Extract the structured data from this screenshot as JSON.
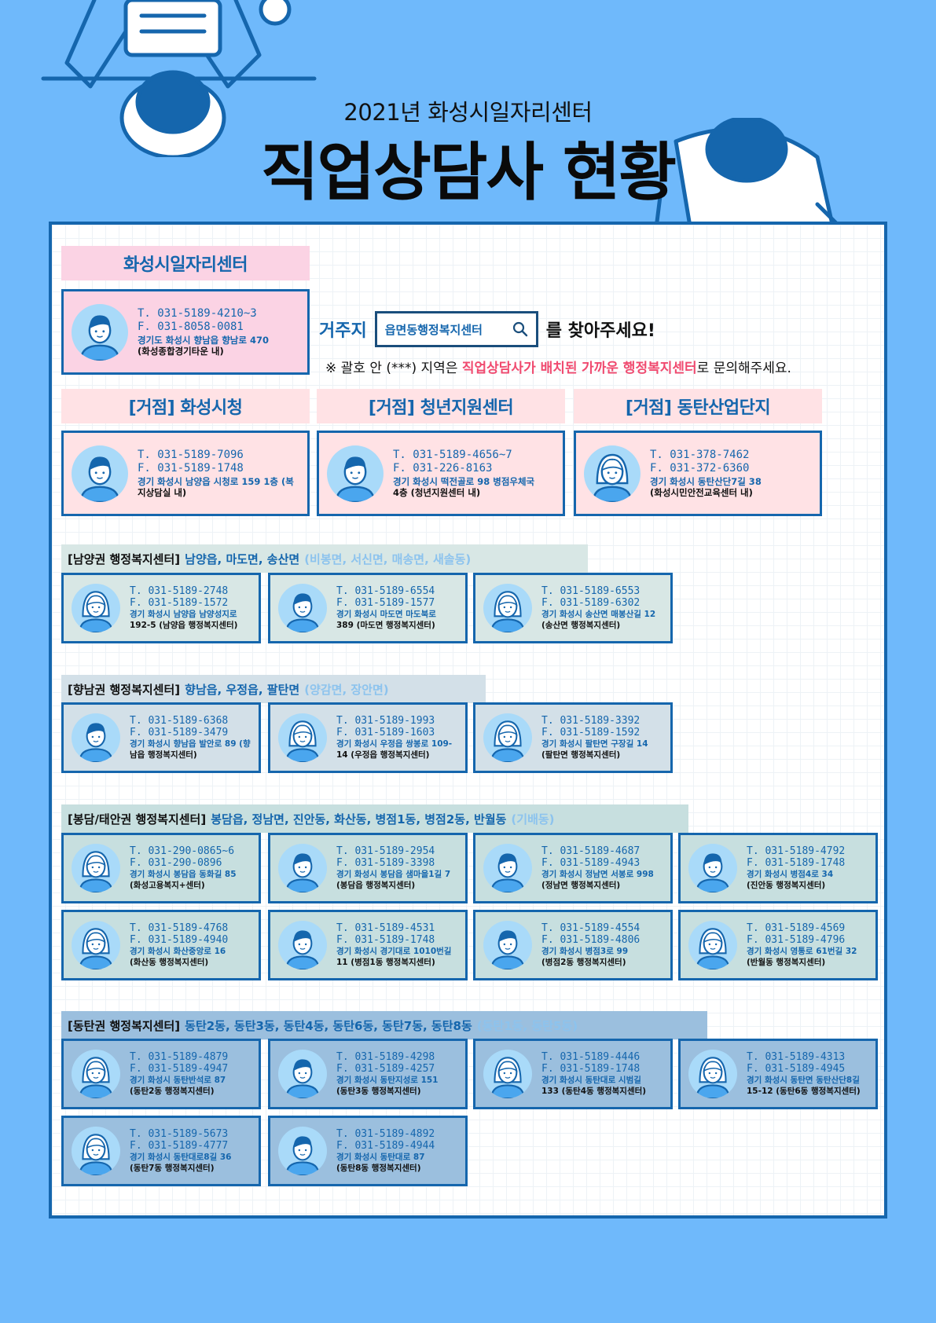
{
  "header": {
    "subtitle": "2021년 화성시일자리센터",
    "title": "직업상담사 현황"
  },
  "search": {
    "label": "거주지",
    "box_text": "읍면동행정복지센터",
    "suffix": "를 찾아주세요!",
    "notice_pre": "※ 괄호 안 (***) 지역은 ",
    "notice_hl1": "직업상담사가 배치된",
    "notice_hl2": "가까운 행정복지센터",
    "notice_post": "로 문의해주세요."
  },
  "colors": {
    "board_border": "#1566ad",
    "pink": "#fbd3e4",
    "light_pink": "#ffe2e5",
    "gray_green": "#d8e7e5",
    "slate": "#d3e0e8",
    "sage": "#c7dfdf",
    "steel": "#9bbfde",
    "text_blue": "#1566ad",
    "highlight": "#f04a6f"
  },
  "center": {
    "title": "화성시일자리센터",
    "card": {
      "tel": "T. 031-5189-4210~3",
      "fax": "F. 031-8058-0081",
      "addr": "경기도 화성시 향남읍 향남로 470",
      "loc": "(화성종합경기타운 내)",
      "avatar": "male-counselor-avatar"
    }
  },
  "hubs": [
    {
      "title": "[거점] 화성시청",
      "card": {
        "tel": "T. 031-5189-7096",
        "fax": "F. 031-5189-1748",
        "addr": "경기 화성시 남양읍 시청로 159 1층 (복",
        "loc": "지상담실 내)",
        "avatar": "male-counselor-avatar"
      }
    },
    {
      "title": "[거점] 청년지원센터",
      "card": {
        "tel": "T. 031-5189-4656~7",
        "fax": "F. 031-226-8163",
        "addr": "경기 화성시 떡전골로 98 병점우체국",
        "loc": "4층 (청년지원센터 내)",
        "avatar": "male-counselor-avatar"
      }
    },
    {
      "title": "[거점] 동탄산업단지",
      "card": {
        "tel": "T. 031-378-7462",
        "fax": "F. 031-372-6360",
        "addr": "경기 화성시 동탄산단7길 38",
        "loc": "(화성시민안전교육센터 내)",
        "avatar": "female-counselor-avatar"
      }
    }
  ],
  "regions": [
    {
      "prefix": "[남양권 행정복지센터]",
      "main": "남양읍, 마도면, 송산면",
      "extra": "(비봉면, 서신면, 매송면, 새솔동)",
      "cards": [
        {
          "tel": "T. 031-5189-2748",
          "fax": "F. 031-5189-1572",
          "addr": "경기 화성시 남양읍 남양성지로",
          "loc": "192-5 (남양읍 행정복지센터)",
          "avatar": "female-counselor-avatar"
        },
        {
          "tel": "T. 031-5189-6554",
          "fax": "F. 031-5189-1577",
          "addr": "경기 화성시 마도면 마도북로",
          "loc": "389 (마도면 행정복지센터)",
          "avatar": "male-counselor-avatar"
        },
        {
          "tel": "T. 031-5189-6553",
          "fax": "F. 031-5189-6302",
          "addr": "경기 화성시  송산면 매봉산길 12",
          "loc": "(송산면 행정복지센터)",
          "avatar": "female-counselor-avatar"
        }
      ]
    },
    {
      "prefix": "[향남권 행정복지센터]",
      "main": "향남읍, 우정읍, 팔탄면",
      "extra": "(양감면, 장안면)",
      "cards": [
        {
          "tel": "T. 031-5189-6368",
          "fax": "F. 031-5189-3479",
          "addr": "경기 화성시 향남읍 발안로 89 (향",
          "loc": "남읍 행정복지센터)",
          "avatar": "male-counselor-avatar"
        },
        {
          "tel": "T. 031-5189-1993",
          "fax": "F. 031-5189-1603",
          "addr": "경기 화성시 우정읍 쌍봉로 109-",
          "loc": "14 (우정읍 행정복지센터)",
          "avatar": "female-counselor-avatar"
        },
        {
          "tel": "T. 031-5189-3392",
          "fax": "F. 031-5189-1592",
          "addr": "경기 화성시 팔탄면 구장길 14",
          "loc": "(팔탄면 행정복지센터)",
          "avatar": "female-counselor-avatar"
        }
      ]
    },
    {
      "prefix": "[봉담/태안권 행정복지센터]",
      "main": "봉담읍, 정남면, 진안동, 화산동, 병점1동, 병점2동, 반월동",
      "extra": "(기배동)",
      "cards": [
        {
          "tel": "T. 031-290-0865~6",
          "fax": "F. 031-290-0896",
          "addr": "경기 화성시 봉담읍 동화길 85",
          "loc": "(화성고용복지+센터)",
          "avatar": "female-counselor-avatar"
        },
        {
          "tel": "T. 031-5189-2954",
          "fax": "F. 031-5189-3398",
          "addr": "경기 화성시 봉담읍 샘마을1길 7",
          "loc": "(봉담읍 행정복지센터)",
          "avatar": "male-counselor-avatar"
        },
        {
          "tel": "T. 031-5189-4687",
          "fax": "F. 031-5189-4943",
          "addr": "경기 화성시 정남면 서봉로 998",
          "loc": "(정남면 행정복지센터)",
          "avatar": "male-counselor-avatar"
        },
        {
          "tel": "T. 031-5189-4792",
          "fax": "F. 031-5189-1748",
          "addr": "경기 화성시 병점4로 34",
          "loc": "(진안동 행정복지센터)",
          "avatar": "male-counselor-avatar"
        },
        {
          "tel": "T. 031-5189-4768",
          "fax": "F. 031-5189-4940",
          "addr": "경기 화성시 화산중앙로 16",
          "loc": "(화산동 행정복지센터)",
          "avatar": "female-counselor-avatar"
        },
        {
          "tel": "T. 031-5189-4531",
          "fax": "F. 031-5189-1748",
          "addr": "경기 화성시 경기대로 1010번길",
          "loc": "11 (병점1동 행정복지센터)",
          "avatar": "male-counselor-avatar"
        },
        {
          "tel": "T. 031-5189-4554",
          "fax": "F. 031-5189-4806",
          "addr": "경기 화성시 병점3로 99",
          "loc": " (병점2동 행정복지센터)",
          "avatar": "male-counselor-avatar"
        },
        {
          "tel": "T. 031-5189-4569",
          "fax": "F. 031-5189-4796",
          "addr": "경기 화성시 영통로 61번길 32",
          "loc": "(반월동 행정복지센터)",
          "avatar": "female-counselor-avatar"
        }
      ]
    },
    {
      "prefix": "[동탄권 행정복지센터]",
      "main": "동탄2동, 동탄3동, 동탄4동, 동탄6동, 동탄7동, 동탄8동",
      "extra": "(동탄1동, 동탄5동)",
      "cards": [
        {
          "tel": "T. 031-5189-4879",
          "fax": "F. 031-5189-4947",
          "addr": "경기 화성시 동탄반석로 87",
          "loc": "(동탄2동 행정복지센터)",
          "avatar": "female-counselor-avatar"
        },
        {
          "tel": "T. 031-5189-4298",
          "fax": "F. 031-5189-4257",
          "addr": "경기 화성시 동탄지성로 151",
          "loc": "(동탄3동 행정복지센터)",
          "avatar": "male-counselor-avatar"
        },
        {
          "tel": "T. 031-5189-4446",
          "fax": "F. 031-5189-1748",
          "addr": "경기 화성시 동탄대로 시범길",
          "loc": "133 (동탄4동 행정복지센터)",
          "avatar": "female-counselor-avatar"
        },
        {
          "tel": "T. 031-5189-4313",
          "fax": "F. 031-5189-4945",
          "addr": "경기 화성시 동탄면 동탄산단8길",
          "loc": "15-12 (동탄6동 행정복지센터)",
          "avatar": "female-counselor-avatar"
        },
        {
          "tel": "T. 031-5189-5673",
          "fax": "F. 031-5189-4777",
          "addr": "경기 화성시 동탄대로8길 36",
          "loc": "(동탄7동 행정복지센터)",
          "avatar": "female-counselor-avatar"
        },
        {
          "tel": "T. 031-5189-4892",
          "fax": "F. 031-5189-4944",
          "addr": "경기 화성시 동탄대로 87",
          "loc": "(동탄8동 행정복지센터)",
          "avatar": "male-counselor-avatar"
        }
      ]
    }
  ]
}
